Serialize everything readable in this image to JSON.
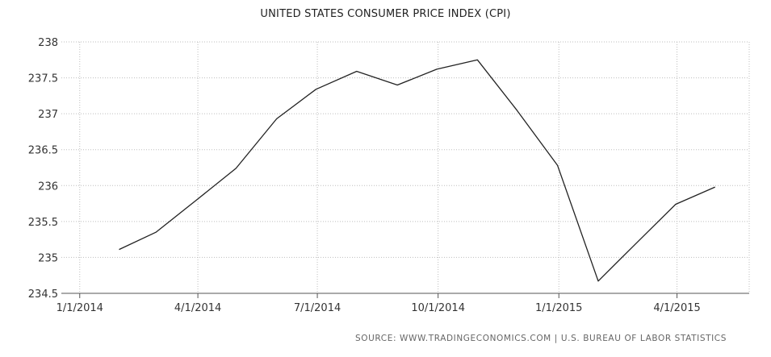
{
  "chart_data": {
    "type": "line",
    "title": "UNITED STATES CONSUMER PRICE INDEX (CPI)",
    "source": "SOURCE: WWW.TRADINGECONOMICS.COM  |  U.S. BUREAU OF LABOR STATISTICS",
    "xlabel": "",
    "ylabel": "",
    "ylim": [
      234.5,
      238
    ],
    "xlim": [
      "2013-12-18",
      "2015-05-26"
    ],
    "y_ticks": [
      234.5,
      235,
      235.5,
      236,
      236.5,
      237,
      237.5,
      238
    ],
    "y_tick_labels": [
      "234.5",
      "235",
      "235.5",
      "236",
      "236.5",
      "237",
      "237.5",
      "238"
    ],
    "x_ticks": [
      "2014-01-01",
      "2014-04-01",
      "2014-07-01",
      "2014-10-01",
      "2015-01-01",
      "2015-04-01"
    ],
    "x_tick_labels": [
      "1/1/2014",
      "4/1/2014",
      "7/1/2014",
      "10/1/2014",
      "1/1/2015",
      "4/1/2015"
    ],
    "grid": true,
    "line_color": "#222222",
    "series": [
      {
        "x": [
          "2014-01-31",
          "2014-02-28",
          "2014-03-31",
          "2014-04-30",
          "2014-05-31",
          "2014-06-30",
          "2014-07-31",
          "2014-08-31",
          "2014-09-30",
          "2014-10-31",
          "2014-11-30",
          "2014-12-31",
          "2015-01-31",
          "2015-02-28",
          "2015-03-31",
          "2015-04-30"
        ],
        "values": [
          235.11,
          235.35,
          235.8,
          236.24,
          236.93,
          237.34,
          237.59,
          237.4,
          237.62,
          237.75,
          237.05,
          236.28,
          234.67,
          235.18,
          235.74,
          235.98
        ]
      }
    ]
  }
}
